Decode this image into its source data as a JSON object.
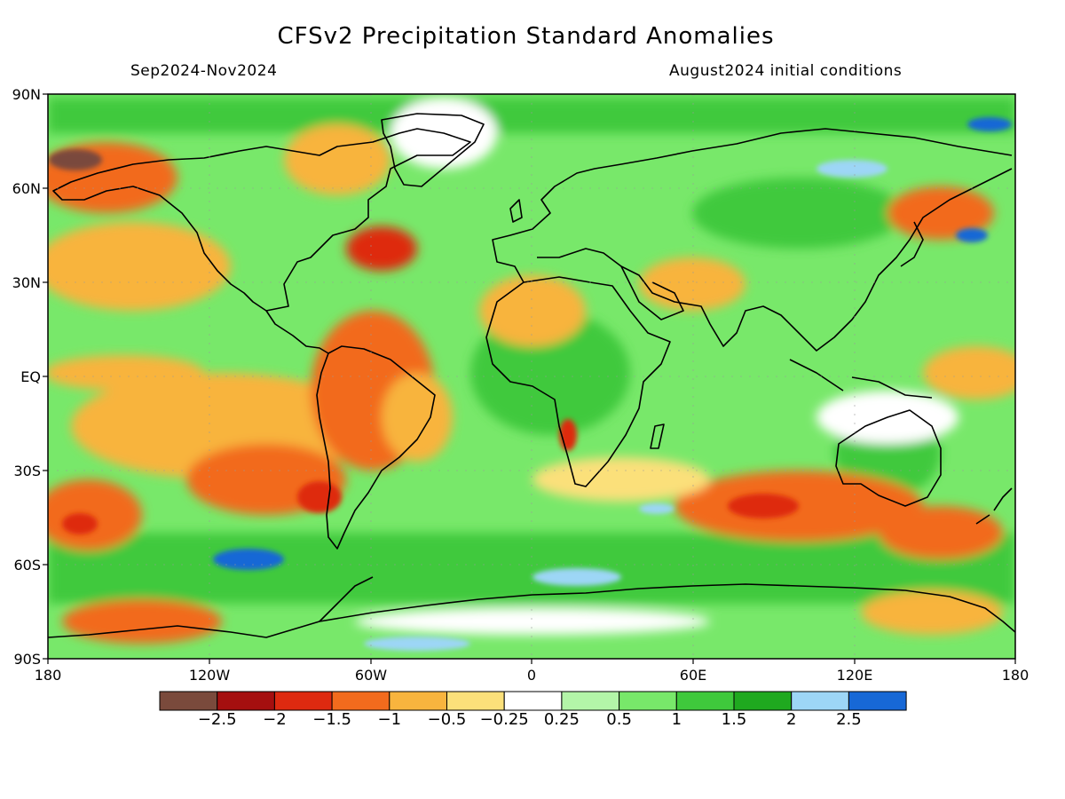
{
  "title": "CFSv2 Precipitation Standard Anomalies",
  "subtitle_left": "Sep2024-Nov2024",
  "subtitle_right": "August2024 initial conditions",
  "lat_labels": [
    "90N",
    "60N",
    "30N",
    "EQ",
    "30S",
    "60S",
    "90S"
  ],
  "lon_labels": [
    "180",
    "120W",
    "60W",
    "0",
    "60E",
    "120E",
    "180"
  ],
  "colorbar": {
    "labels": [
      "−2.5",
      "−2",
      "−1.5",
      "−1",
      "−0.5",
      "−0.25",
      "0.25",
      "0.5",
      "1",
      "1.5",
      "2",
      "2.5"
    ],
    "colors": [
      "#7a4a3c",
      "#a50f0f",
      "#de2a10",
      "#f26b1d",
      "#f8b43e",
      "#fbe07a",
      "#ffffff",
      "#b3f5a8",
      "#78e86a",
      "#3fc93c",
      "#1fa91f",
      "#9dd6f6",
      "#1768d6"
    ]
  }
}
